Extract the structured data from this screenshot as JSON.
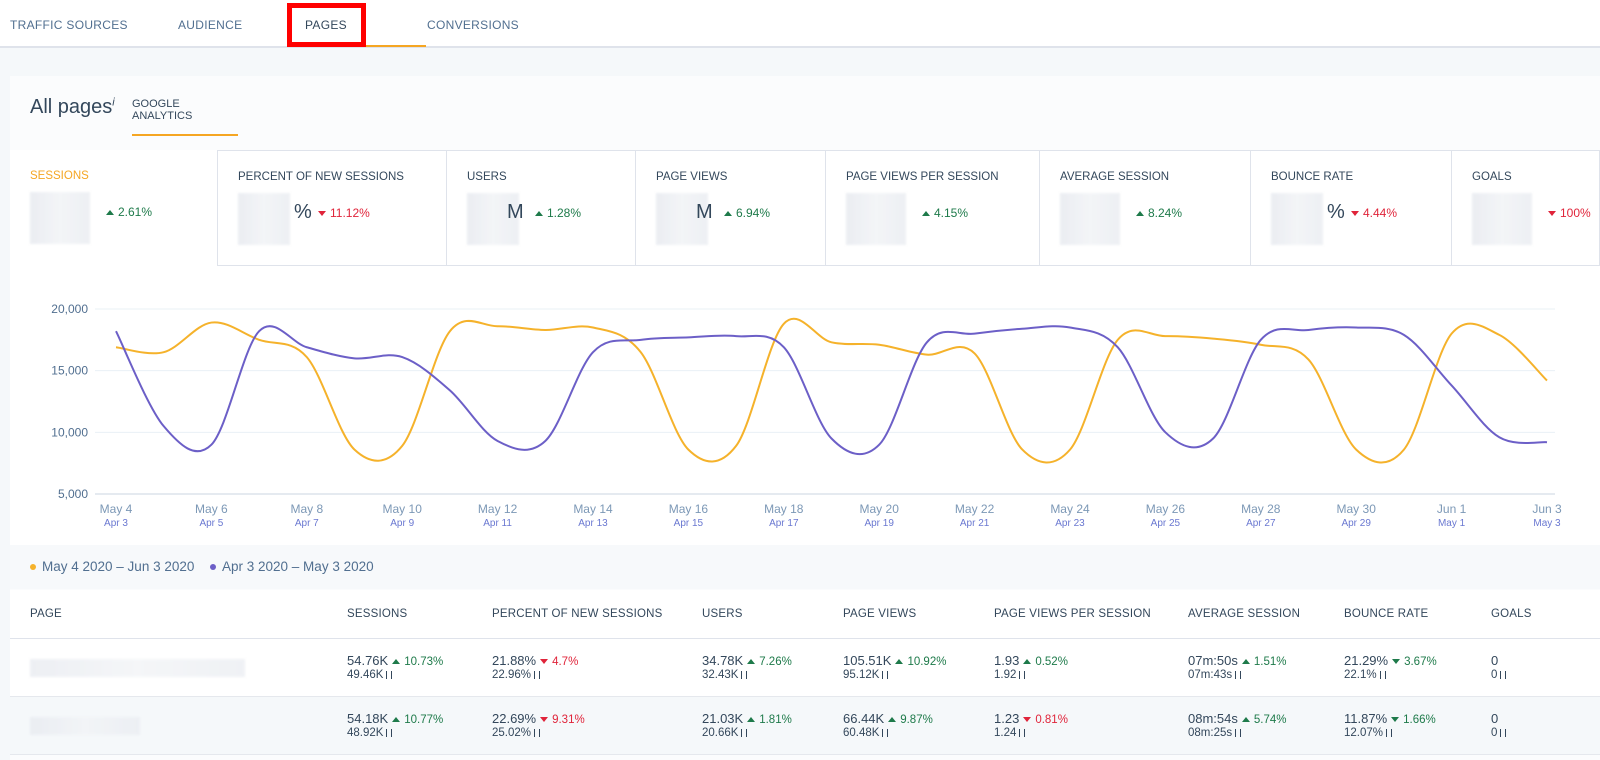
{
  "tabs": {
    "items": [
      "TRAFFIC SOURCES",
      "AUDIENCE",
      "PAGES",
      "CONVERSIONS"
    ],
    "active": 2
  },
  "panel": {
    "title": "All pages",
    "info": "i",
    "subtab": "GOOGLE ANALYTICS"
  },
  "metrics": [
    {
      "label": "SESSIONS",
      "change": "2.61%",
      "trend": "up",
      "good": true
    },
    {
      "label": "PERCENT OF NEW SESSIONS",
      "unit": "%",
      "change": "11.12%",
      "trend": "down",
      "good": false
    },
    {
      "label": "USERS",
      "unit": "M",
      "change": "1.28%",
      "trend": "up",
      "good": true
    },
    {
      "label": "PAGE VIEWS",
      "unit": "M",
      "change": "6.94%",
      "trend": "up",
      "good": true
    },
    {
      "label": "PAGE VIEWS PER SESSION",
      "change": "4.15%",
      "trend": "up",
      "good": true
    },
    {
      "label": "AVERAGE SESSION",
      "change": "8.24%",
      "trend": "up",
      "good": true
    },
    {
      "label": "BOUNCE RATE",
      "unit": "%",
      "change": "4.44%",
      "trend": "down",
      "good": false
    },
    {
      "label": "GOALS",
      "change": "100%",
      "trend": "down",
      "good": false
    }
  ],
  "chart_data": {
    "type": "line",
    "categories": [
      "May 4",
      null,
      "May 6",
      null,
      "May 8",
      null,
      "May 10",
      null,
      "May 12",
      null,
      "May 14",
      null,
      "May 16",
      null,
      "May 18",
      null,
      "May 20",
      null,
      "May 22",
      null,
      "May 24",
      null,
      "May 26",
      null,
      "May 28",
      null,
      "May 30",
      null,
      "Jun 1",
      null,
      "Jun 3"
    ],
    "categories2": [
      "Apr 3",
      null,
      "Apr 5",
      null,
      "Apr 7",
      null,
      "Apr 9",
      null,
      "Apr 11",
      null,
      "Apr 13",
      null,
      "Apr 15",
      null,
      "Apr 17",
      null,
      "Apr 19",
      null,
      "Apr 21",
      null,
      "Apr 23",
      null,
      "Apr 25",
      null,
      "Apr 27",
      null,
      "Apr 29",
      null,
      "May 1",
      null,
      "May 3"
    ],
    "ylim": [
      5000,
      20000
    ],
    "yticks": [
      {
        "value": 5000,
        "label": "5,000"
      },
      {
        "value": 10000,
        "label": "10,000"
      },
      {
        "value": 15000,
        "label": "15,000"
      },
      {
        "value": 20000,
        "label": "20,000"
      }
    ],
    "grid": true,
    "series": [
      {
        "name": "May 4 2020 – Jun 3 2020",
        "color": "#f5b22b",
        "values": [
          16900,
          16500,
          18900,
          17500,
          16100,
          8600,
          8900,
          18200,
          18600,
          18300,
          18500,
          16500,
          8600,
          8900,
          18800,
          17300,
          17100,
          16300,
          16400,
          8600,
          8600,
          17500,
          17800,
          17600,
          17100,
          15900,
          8600,
          8600,
          18000,
          17900,
          14200
        ]
      },
      {
        "name": "Apr 3 2020 – May 3 2020",
        "color": "#6c5fc7",
        "values": [
          18200,
          10500,
          9000,
          18200,
          16900,
          16000,
          16100,
          13400,
          9300,
          9300,
          16500,
          17500,
          17700,
          17800,
          16900,
          9500,
          9000,
          17300,
          18000,
          18400,
          18500,
          16900,
          10000,
          9500,
          17500,
          18300,
          18500,
          17900,
          13800,
          9600,
          9200
        ]
      }
    ]
  },
  "table": {
    "columns": [
      "PAGE",
      "SESSIONS",
      "PERCENT OF NEW SESSIONS",
      "USERS",
      "PAGE VIEWS",
      "PAGE VIEWS PER SESSION",
      "AVERAGE SESSION",
      "BOUNCE RATE",
      "GOALS"
    ],
    "rows": [
      {
        "cells": [
          {
            "value": "54.76K",
            "change": "10.73%",
            "trend": "up",
            "good": true,
            "prev": "49.46K"
          },
          {
            "value": "21.88%",
            "change": "4.7%",
            "trend": "down",
            "good": false,
            "prev": "22.96%"
          },
          {
            "value": "34.78K",
            "change": "7.26%",
            "trend": "up",
            "good": true,
            "prev": "32.43K"
          },
          {
            "value": "105.51K",
            "change": "10.92%",
            "trend": "up",
            "good": true,
            "prev": "95.12K"
          },
          {
            "value": "1.93",
            "change": "0.52%",
            "trend": "up",
            "good": true,
            "prev": "1.92"
          },
          {
            "value": "07m:50s",
            "change": "1.51%",
            "trend": "up",
            "good": true,
            "prev": "07m:43s"
          },
          {
            "value": "21.29%",
            "change": "3.67%",
            "trend": "down",
            "good": true,
            "prev": "22.1%"
          },
          {
            "value": "0",
            "prev": "0"
          }
        ]
      },
      {
        "cells": [
          {
            "value": "54.18K",
            "change": "10.77%",
            "trend": "up",
            "good": true,
            "prev": "48.92K"
          },
          {
            "value": "22.69%",
            "change": "9.31%",
            "trend": "down",
            "good": false,
            "prev": "25.02%"
          },
          {
            "value": "21.03K",
            "change": "1.81%",
            "trend": "up",
            "good": true,
            "prev": "20.66K"
          },
          {
            "value": "66.44K",
            "change": "9.87%",
            "trend": "up",
            "good": true,
            "prev": "60.48K"
          },
          {
            "value": "1.23",
            "change": "0.81%",
            "trend": "down",
            "good": false,
            "prev": "1.24"
          },
          {
            "value": "08m:54s",
            "change": "5.74%",
            "trend": "up",
            "good": true,
            "prev": "08m:25s"
          },
          {
            "value": "11.87%",
            "change": "1.66%",
            "trend": "down",
            "good": true,
            "prev": "12.07%"
          },
          {
            "value": "0",
            "prev": "0"
          }
        ]
      }
    ]
  }
}
